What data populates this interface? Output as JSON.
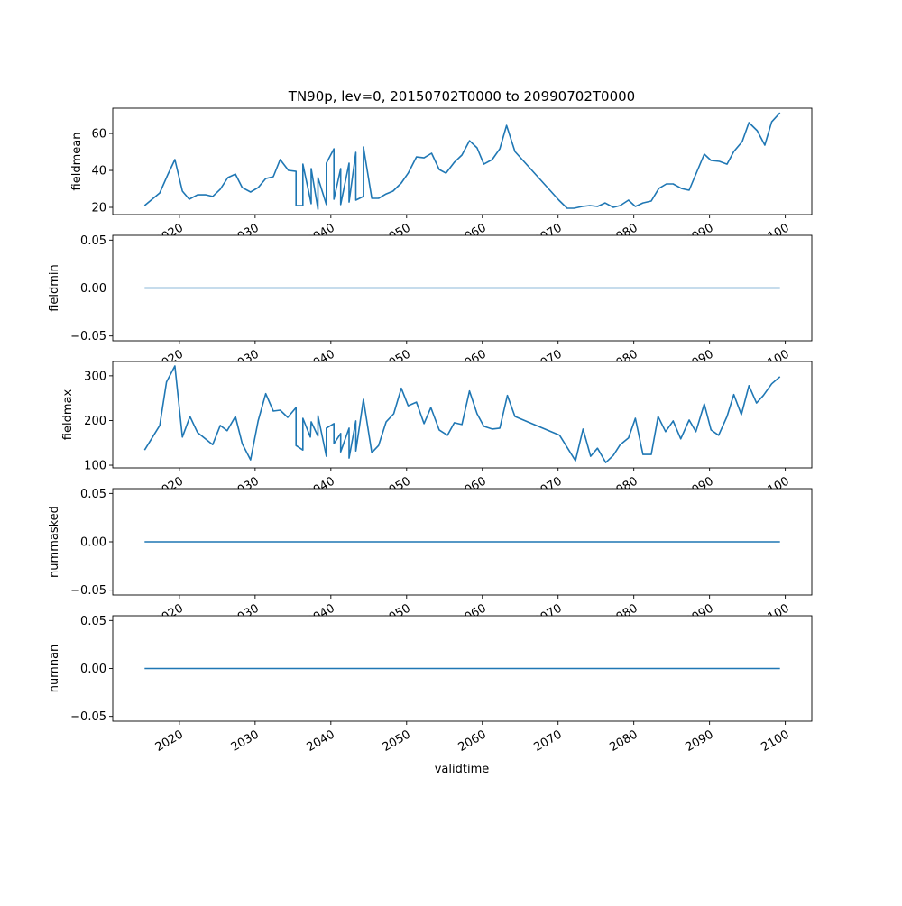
{
  "chart_data": {
    "type": "line",
    "title": "TN90p, lev=0, 20150702T0000 to 20990702T0000",
    "xlabel": "validtime",
    "xlim": [
      2011.2,
      2103.5
    ],
    "xticks": [
      2020,
      2030,
      2040,
      2050,
      2060,
      2070,
      2080,
      2090,
      2100
    ],
    "xtick_labels": [
      "2020",
      "2030",
      "2040",
      "2050",
      "2060",
      "2070",
      "2080",
      "2090",
      "2100"
    ],
    "line_color": "#1f77b4",
    "grid": false,
    "panels": [
      {
        "ylabel": "fieldmean",
        "ylim": [
          16.1,
          73.7
        ],
        "yticks": [
          20,
          40,
          60
        ],
        "ytick_labels": [
          "20",
          "40",
          "60"
        ],
        "points": [
          [
            2015.4,
            21
          ],
          [
            2017.4,
            27.8
          ],
          [
            2018.5,
            38
          ],
          [
            2019.4,
            45.9
          ],
          [
            2020.4,
            28.8
          ],
          [
            2021.3,
            24.4
          ],
          [
            2022.4,
            26.8
          ],
          [
            2023.5,
            26.8
          ],
          [
            2024.4,
            25.9
          ],
          [
            2025.4,
            29.8
          ],
          [
            2026.4,
            36.1
          ],
          [
            2027.4,
            38
          ],
          [
            2028.3,
            30.7
          ],
          [
            2029.4,
            28.3
          ],
          [
            2030.4,
            30.7
          ],
          [
            2031.4,
            35.6
          ],
          [
            2032.4,
            36.6
          ],
          [
            2033.3,
            45.9
          ],
          [
            2034.4,
            40
          ],
          [
            2035.4,
            39.5
          ],
          [
            2035.4,
            21.0
          ],
          [
            2036.3,
            21.0
          ],
          [
            2036.3,
            43.4
          ],
          [
            2037.4,
            22.0
          ],
          [
            2037.4,
            41.0
          ],
          [
            2038.3,
            19.0
          ],
          [
            2038.3,
            36.1
          ],
          [
            2039.4,
            21.5
          ],
          [
            2039.4,
            43.9
          ],
          [
            2040.4,
            51.7
          ],
          [
            2040.4,
            24.4
          ],
          [
            2041.3,
            41.0
          ],
          [
            2041.3,
            21.5
          ],
          [
            2042.4,
            43.9
          ],
          [
            2042.4,
            22.9
          ],
          [
            2043.3,
            49.8
          ],
          [
            2043.3,
            23.9
          ],
          [
            2044.3,
            25.9
          ],
          [
            2044.3,
            52.7
          ],
          [
            2045.4,
            24.9
          ],
          [
            2046.3,
            24.9
          ],
          [
            2047.3,
            27.3
          ],
          [
            2048.2,
            28.8
          ],
          [
            2049.3,
            33.2
          ],
          [
            2050.2,
            38.5
          ],
          [
            2051.3,
            47.3
          ],
          [
            2052.3,
            46.8
          ],
          [
            2053.3,
            49.3
          ],
          [
            2054.3,
            40.5
          ],
          [
            2055.2,
            38.5
          ],
          [
            2056.3,
            44.4
          ],
          [
            2057.3,
            48.3
          ],
          [
            2058.3,
            56.1
          ],
          [
            2059.3,
            52.2
          ],
          [
            2060.2,
            43.4
          ],
          [
            2061.3,
            45.9
          ],
          [
            2062.3,
            51.7
          ],
          [
            2063.2,
            64.4
          ],
          [
            2064.3,
            50.2
          ],
          [
            2070.1,
            23.9
          ],
          [
            2071.2,
            19.5
          ],
          [
            2072.1,
            19.5
          ],
          [
            2073.2,
            20.5
          ],
          [
            2074.2,
            21
          ],
          [
            2075.2,
            20.5
          ],
          [
            2076.2,
            22.4
          ],
          [
            2077.3,
            20
          ],
          [
            2078.2,
            21
          ],
          [
            2079.3,
            23.9
          ],
          [
            2080.2,
            20.5
          ],
          [
            2081.2,
            22.4
          ],
          [
            2082.3,
            23.4
          ],
          [
            2083.3,
            30.2
          ],
          [
            2084.3,
            32.7
          ],
          [
            2085.2,
            32.7
          ],
          [
            2086.3,
            30.2
          ],
          [
            2087.3,
            29.3
          ],
          [
            2089.3,
            48.8
          ],
          [
            2090.2,
            45.4
          ],
          [
            2091.3,
            44.9
          ],
          [
            2092.3,
            43.4
          ],
          [
            2093.2,
            50.2
          ],
          [
            2094.3,
            55.6
          ],
          [
            2095.2,
            65.9
          ],
          [
            2096.3,
            61.5
          ],
          [
            2097.3,
            53.7
          ],
          [
            2098.2,
            66.3
          ],
          [
            2099.3,
            71.2
          ]
        ]
      },
      {
        "ylabel": "fieldmin",
        "ylim": [
          -0.055,
          0.055
        ],
        "yticks": [
          -0.05,
          0,
          0.05
        ],
        "ytick_labels": [
          "−0.05",
          "0.00",
          "0.05"
        ],
        "points": [
          [
            2015.4,
            0
          ],
          [
            2099.3,
            0
          ]
        ]
      },
      {
        "ylabel": "fieldmax",
        "ylim": [
          94,
          332
        ],
        "yticks": [
          100,
          200,
          300
        ],
        "ytick_labels": [
          "100",
          "200",
          "300"
        ],
        "points": [
          [
            2015.4,
            134
          ],
          [
            2017.4,
            189
          ],
          [
            2018.3,
            286
          ],
          [
            2019.4,
            322
          ],
          [
            2020.4,
            163
          ],
          [
            2021.4,
            209
          ],
          [
            2022.4,
            173
          ],
          [
            2024.4,
            146
          ],
          [
            2025.4,
            189
          ],
          [
            2026.3,
            177
          ],
          [
            2027.4,
            209
          ],
          [
            2028.3,
            148
          ],
          [
            2029.4,
            112
          ],
          [
            2030.4,
            199
          ],
          [
            2031.4,
            260
          ],
          [
            2032.4,
            221
          ],
          [
            2033.3,
            223
          ],
          [
            2034.3,
            207
          ],
          [
            2035.4,
            229
          ],
          [
            2035.4,
            144
          ],
          [
            2036.3,
            134
          ],
          [
            2036.3,
            205
          ],
          [
            2037.3,
            163
          ],
          [
            2037.4,
            197
          ],
          [
            2038.3,
            165
          ],
          [
            2038.3,
            211
          ],
          [
            2039.4,
            120
          ],
          [
            2039.4,
            183
          ],
          [
            2040.4,
            193
          ],
          [
            2040.4,
            148
          ],
          [
            2041.3,
            171
          ],
          [
            2041.3,
            130
          ],
          [
            2042.4,
            183
          ],
          [
            2042.4,
            116
          ],
          [
            2043.3,
            199
          ],
          [
            2043.3,
            132
          ],
          [
            2044.3,
            247
          ],
          [
            2045.4,
            128
          ],
          [
            2046.3,
            144
          ],
          [
            2047.3,
            197
          ],
          [
            2048.3,
            215
          ],
          [
            2049.3,
            272
          ],
          [
            2050.2,
            233
          ],
          [
            2051.3,
            241
          ],
          [
            2052.3,
            193
          ],
          [
            2053.2,
            229
          ],
          [
            2054.3,
            179
          ],
          [
            2055.4,
            167
          ],
          [
            2056.3,
            195
          ],
          [
            2057.3,
            191
          ],
          [
            2058.3,
            266
          ],
          [
            2059.3,
            215
          ],
          [
            2060.2,
            187
          ],
          [
            2061.3,
            181
          ],
          [
            2062.3,
            183
          ],
          [
            2063.3,
            256
          ],
          [
            2064.3,
            209
          ],
          [
            2070.2,
            167
          ],
          [
            2072.3,
            110
          ],
          [
            2073.3,
            181
          ],
          [
            2074.3,
            120
          ],
          [
            2075.2,
            138
          ],
          [
            2076.3,
            106
          ],
          [
            2077.3,
            122
          ],
          [
            2078.2,
            146
          ],
          [
            2079.3,
            161
          ],
          [
            2080.2,
            205
          ],
          [
            2081.2,
            124
          ],
          [
            2082.3,
            124
          ],
          [
            2083.2,
            209
          ],
          [
            2084.2,
            175
          ],
          [
            2085.2,
            199
          ],
          [
            2086.2,
            159
          ],
          [
            2087.3,
            201
          ],
          [
            2088.2,
            175
          ],
          [
            2089.3,
            237
          ],
          [
            2090.2,
            179
          ],
          [
            2091.2,
            167
          ],
          [
            2092.3,
            209
          ],
          [
            2093.2,
            258
          ],
          [
            2094.2,
            213
          ],
          [
            2095.2,
            278
          ],
          [
            2096.2,
            239
          ],
          [
            2097.1,
            256
          ],
          [
            2098.2,
            282
          ],
          [
            2099.3,
            298
          ]
        ]
      },
      {
        "ylabel": "nummasked",
        "ylim": [
          -0.055,
          0.055
        ],
        "yticks": [
          -0.05,
          0,
          0.05
        ],
        "ytick_labels": [
          "−0.05",
          "0.00",
          "0.05"
        ],
        "points": [
          [
            2015.4,
            0
          ],
          [
            2099.3,
            0
          ]
        ]
      },
      {
        "ylabel": "numnan",
        "ylim": [
          -0.055,
          0.055
        ],
        "yticks": [
          -0.05,
          0,
          0.05
        ],
        "ytick_labels": [
          "−0.05",
          "0.00",
          "0.05"
        ],
        "points": [
          [
            2015.4,
            0
          ],
          [
            2099.3,
            0
          ]
        ]
      }
    ]
  }
}
